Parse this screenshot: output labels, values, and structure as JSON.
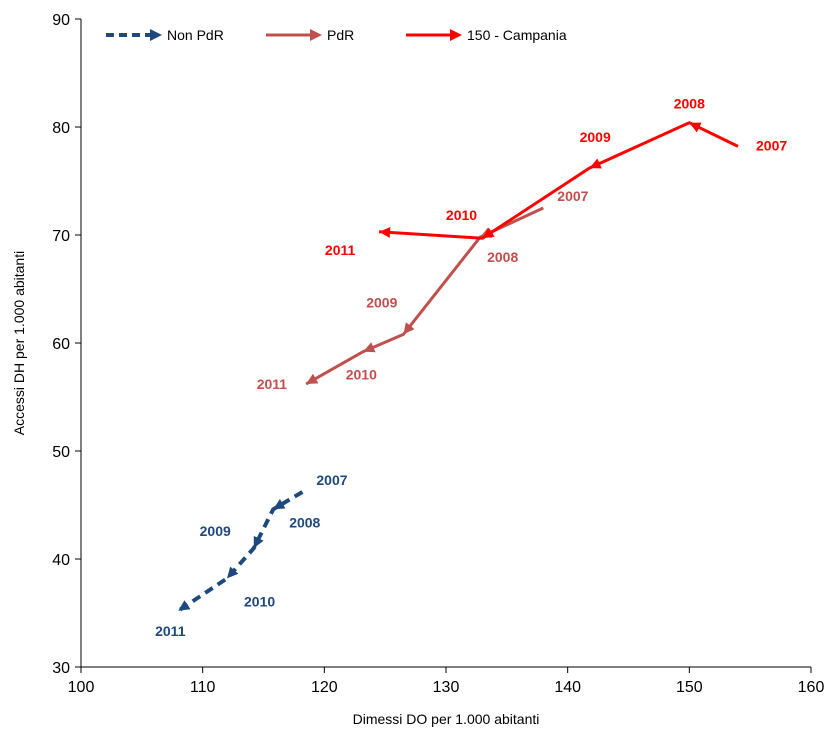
{
  "chart_data": {
    "type": "line",
    "title": "",
    "xlabel": "Dimessi DO per 1.000 abitanti",
    "ylabel": "Accessi DH per 1.000 abitanti",
    "xlim": [
      100,
      160
    ],
    "ylim": [
      30,
      90
    ],
    "xticks": [
      100,
      110,
      120,
      130,
      140,
      150,
      160
    ],
    "yticks": [
      30,
      40,
      50,
      60,
      70,
      80,
      90
    ],
    "grid": false,
    "legend_position": "top-left",
    "series": [
      {
        "name": "Non PdR",
        "color": "#1f497d",
        "dashed": true,
        "points": [
          {
            "year": "2007",
            "x": 118.2,
            "y": 46.2
          },
          {
            "year": "2008",
            "x": 115.8,
            "y": 44.6
          },
          {
            "year": "2009",
            "x": 114.2,
            "y": 41.0
          },
          {
            "year": "2010",
            "x": 112.0,
            "y": 38.2
          },
          {
            "year": "2011",
            "x": 108.0,
            "y": 35.2
          }
        ]
      },
      {
        "name": "PdR",
        "color": "#c0504d",
        "dashed": false,
        "points": [
          {
            "year": "2007",
            "x": 138.0,
            "y": 72.5
          },
          {
            "year": "2008",
            "x": 132.8,
            "y": 69.8
          },
          {
            "year": "2009",
            "x": 126.5,
            "y": 60.8
          },
          {
            "year": "2010",
            "x": 123.2,
            "y": 59.2
          },
          {
            "year": "2011",
            "x": 118.5,
            "y": 56.2
          }
        ]
      },
      {
        "name": "150 - Campania",
        "color": "#ff0000",
        "dashed": false,
        "points": [
          {
            "year": "2007",
            "x": 154.0,
            "y": 78.2
          },
          {
            "year": "2008",
            "x": 150.0,
            "y": 80.4
          },
          {
            "year": "2009",
            "x": 141.8,
            "y": 76.2
          },
          {
            "year": "2010",
            "x": 133.0,
            "y": 69.7
          },
          {
            "year": "2011",
            "x": 124.5,
            "y": 70.3
          }
        ]
      }
    ]
  }
}
